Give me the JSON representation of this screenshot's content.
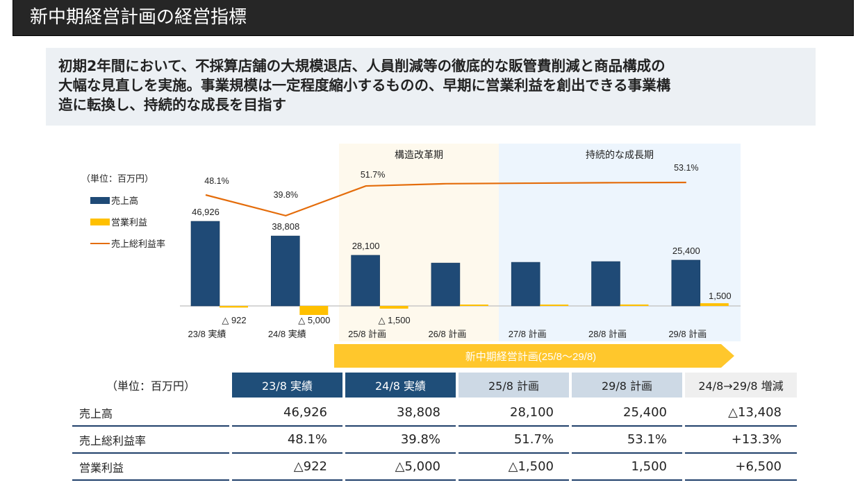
{
  "header": {
    "title": "新中期経営計画の経営指標"
  },
  "callout": {
    "lines": [
      "初期2年間において、不採算店舗の大規模退店、人員削減等の徹底的な販管費削減と商品構成の",
      "大幅な見直しを実施。事業規模は一定程度縮小するものの、早期に営業利益を創出できる事業構",
      "造に転換し、持続的な成長を目指す"
    ]
  },
  "colors": {
    "sales": "#1f4a76",
    "operating_profit": "#ffc000",
    "gross_margin": "#e46c0a",
    "phase_reform_bg": "#fef9ed",
    "phase_growth_bg": "#edf5fd",
    "plan_arrow": "#ffc72c",
    "table_actual_header": "#1f4e79",
    "table_plan_header": "#cdd9e5",
    "table_diff_header": "#efefef"
  },
  "chart_data": {
    "type": "bar",
    "title": "",
    "unit_label": "（単位：百万円）",
    "categories": [
      "23/8 実績",
      "24/8 実績",
      "25/8 計画",
      "26/8 計画",
      "27/8 計画",
      "28/8 計画",
      "29/8 計画"
    ],
    "series": [
      {
        "name": "売上高",
        "type": "bar",
        "values": [
          46926,
          38808,
          28100,
          23800,
          24200,
          24600,
          25400
        ],
        "labels": [
          "46,926",
          "38,808",
          "28,100",
          "",
          "",
          "",
          "25,400"
        ]
      },
      {
        "name": "営業利益",
        "type": "bar",
        "values": [
          -922,
          -5000,
          -1500,
          0,
          500,
          800,
          1500
        ],
        "labels": [
          "△ 922",
          "△ 5,000",
          "△ 1,500",
          "",
          "",
          "",
          "1,500"
        ]
      },
      {
        "name": "売上総利益率",
        "type": "line",
        "values": [
          48.1,
          39.8,
          51.7,
          52.6,
          52.8,
          53.0,
          53.1
        ],
        "labels": [
          "48.1%",
          "39.8%",
          "51.7%",
          "",
          "",
          "",
          "53.1%"
        ]
      }
    ],
    "legend": [
      "売上高",
      "営業利益",
      "売上総利益率"
    ],
    "legend_position": "left",
    "phases": [
      {
        "label": "構造改革期",
        "from": "25/8 計画",
        "to": "26/8 計画"
      },
      {
        "label": "持続的な成長期",
        "from": "27/8 計画",
        "to": "29/8 計画"
      }
    ],
    "plan_arrow_label": "新中期経営計画(25/8～29/8)",
    "xlabel": "",
    "ylabel": "",
    "grid": false
  },
  "table": {
    "unit_label": "（単位：百万円）",
    "headers": [
      "23/8 実績",
      "24/8 実績",
      "25/8 計画",
      "29/8 計画",
      "24/8→29/8 増減"
    ],
    "rows": [
      {
        "label": "売上高",
        "values": [
          "46,926",
          "38,808",
          "28,100",
          "25,400",
          "△13,408"
        ]
      },
      {
        "label": "売上総利益率",
        "values": [
          "48.1%",
          "39.8%",
          "51.7%",
          "53.1%",
          "+13.3%"
        ]
      },
      {
        "label": "営業利益",
        "values": [
          "△922",
          "△5,000",
          "△1,500",
          "1,500",
          "+6,500"
        ]
      }
    ]
  }
}
